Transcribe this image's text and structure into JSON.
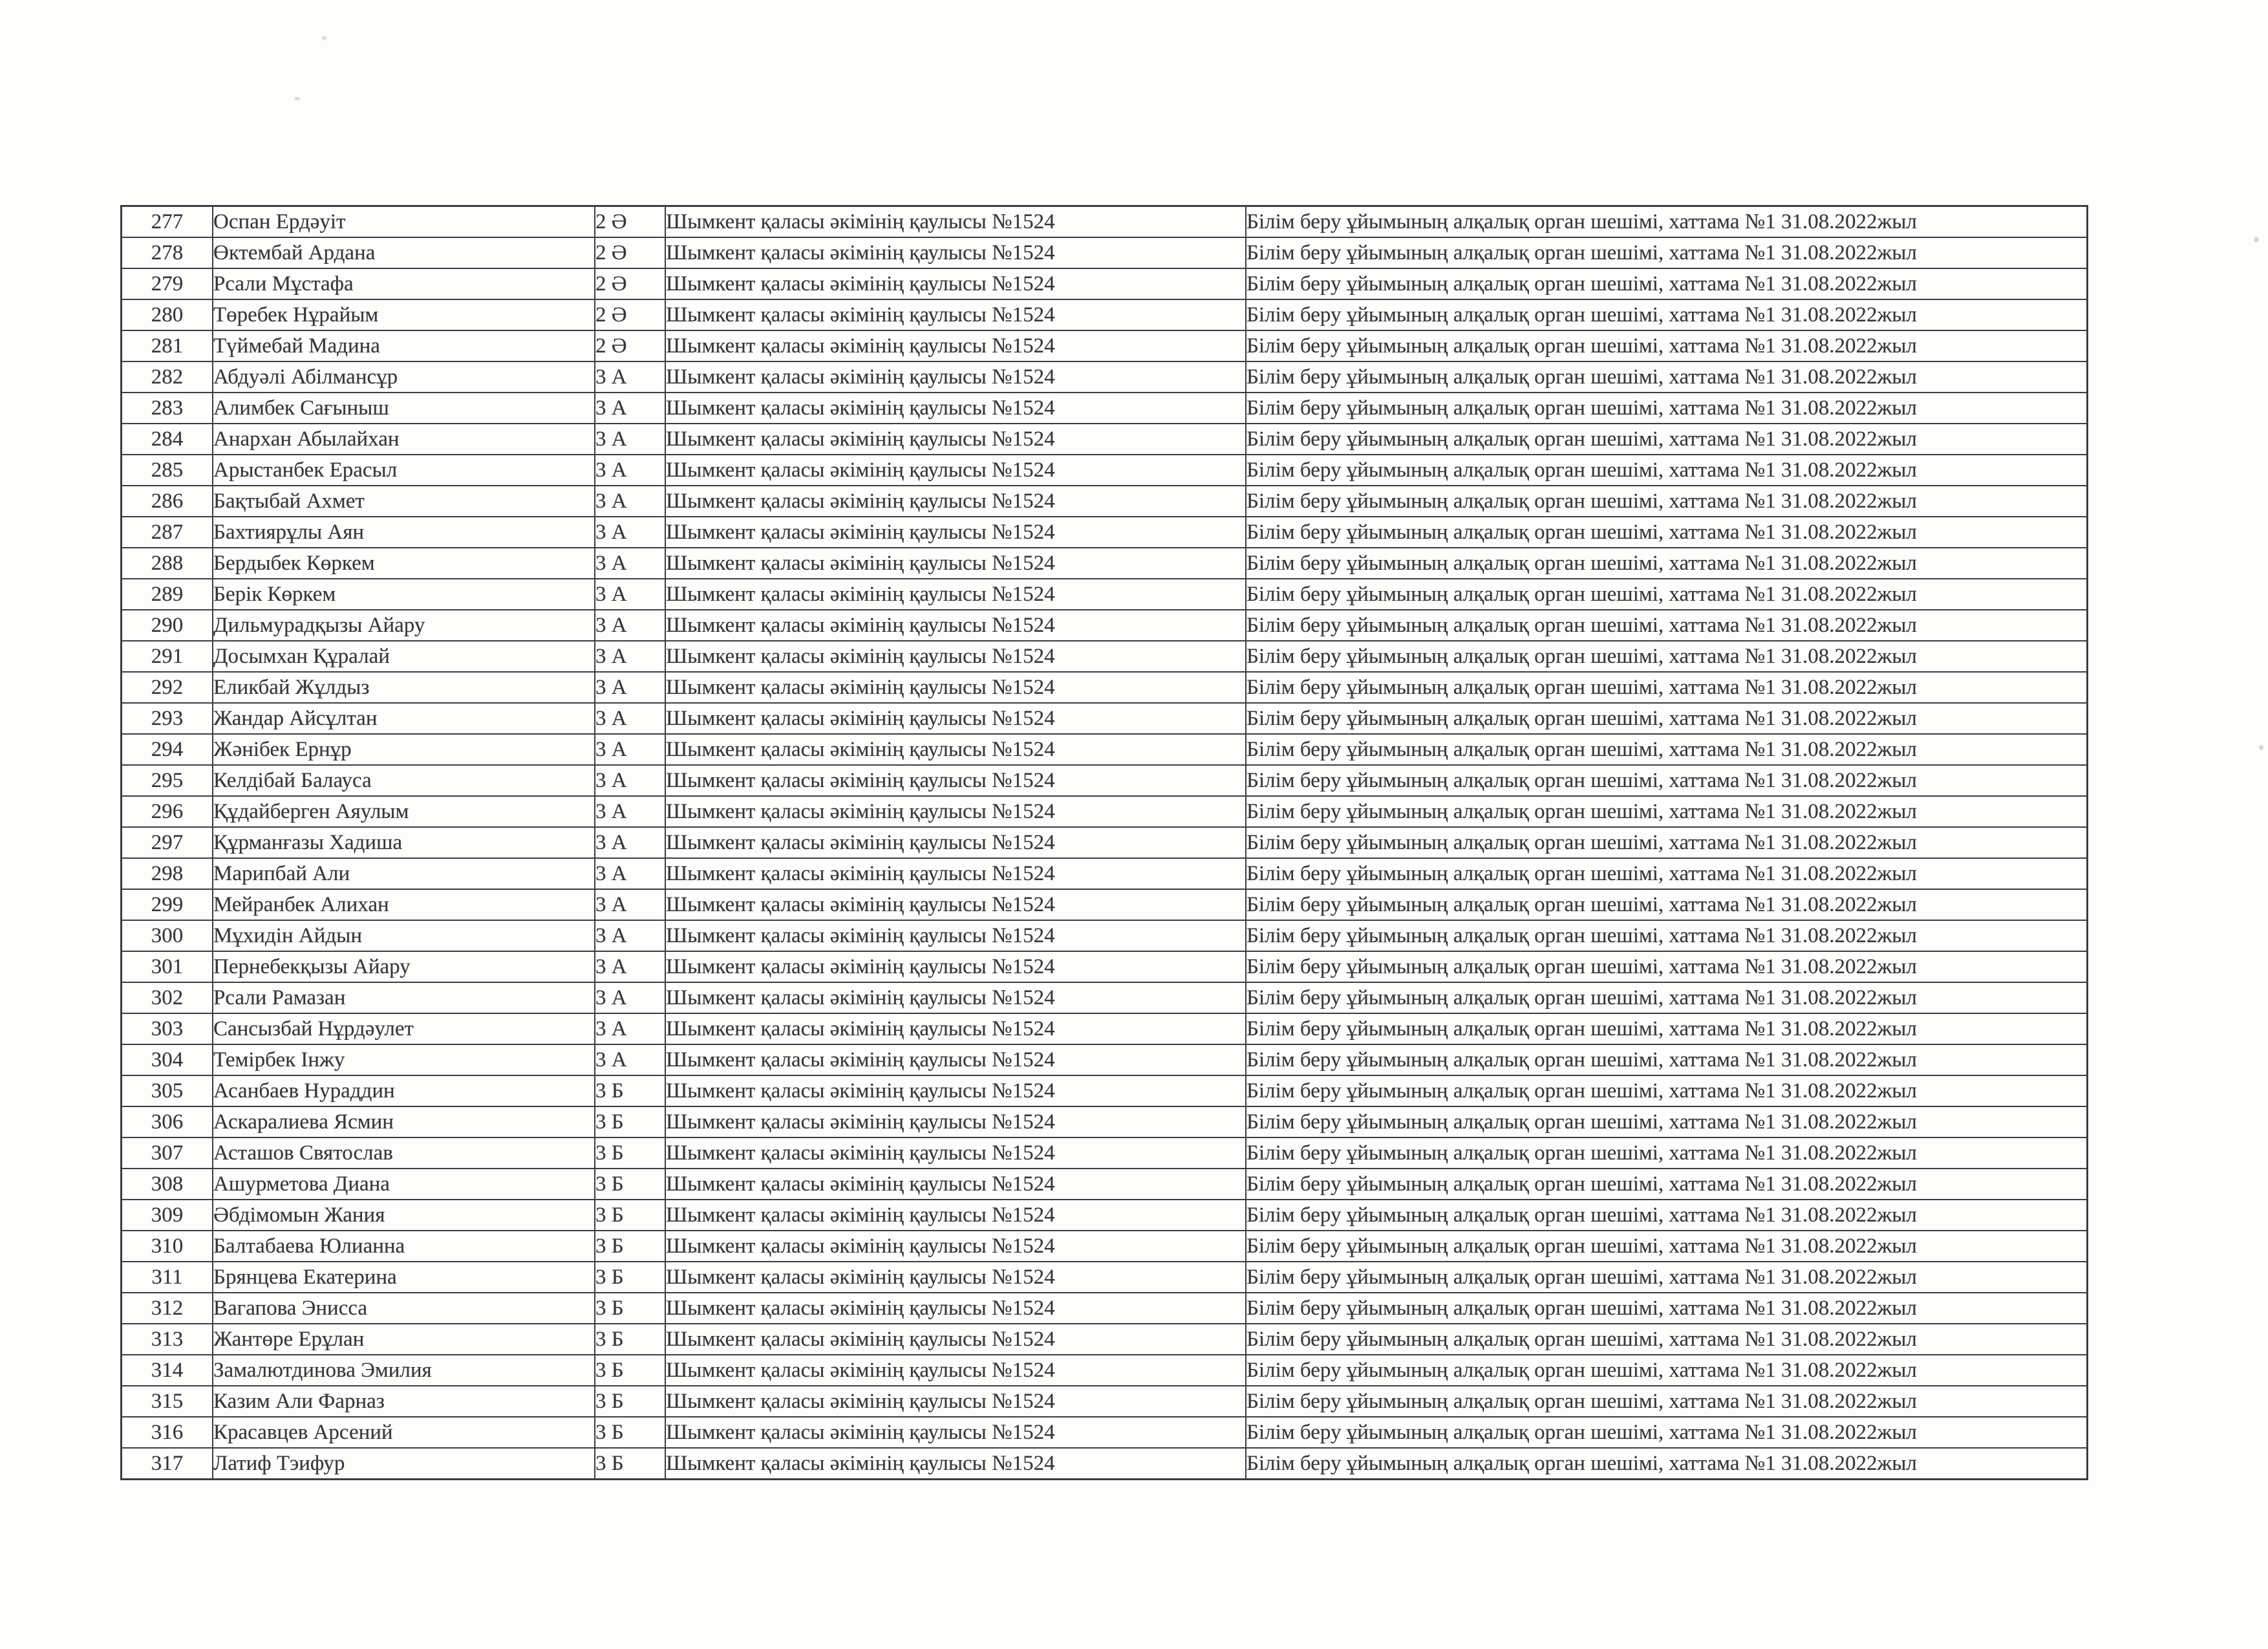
{
  "table": {
    "fields": [
      "no",
      "name",
      "class",
      "decision",
      "protocol"
    ],
    "rows": [
      {
        "no": "277",
        "name": "Оспан Ердәуіт",
        "class": "2 Ә",
        "decision": "Шымкент қаласы әкімінің қаулысы №1524",
        "protocol": "Білім беру ұйымының алқалық орган шешімі, хаттама №1 31.08.2022жыл"
      },
      {
        "no": "278",
        "name": "Өктембай Ардана",
        "class": "2 Ә",
        "decision": "Шымкент қаласы әкімінің қаулысы №1524",
        "protocol": "Білім беру ұйымының алқалық орган шешімі, хаттама №1 31.08.2022жыл"
      },
      {
        "no": "279",
        "name": "Рсали Мұстафа",
        "class": "2 Ә",
        "decision": "Шымкент қаласы әкімінің қаулысы №1524",
        "protocol": "Білім беру ұйымының алқалық орган шешімі, хаттама №1 31.08.2022жыл"
      },
      {
        "no": "280",
        "name": "Төребек Нұрайым",
        "class": "2 Ә",
        "decision": "Шымкент қаласы әкімінің қаулысы №1524",
        "protocol": "Білім беру ұйымының алқалық орган шешімі, хаттама №1 31.08.2022жыл"
      },
      {
        "no": "281",
        "name": "Түймебай Мадина",
        "class": "2 Ә",
        "decision": "Шымкент қаласы әкімінің қаулысы №1524",
        "protocol": "Білім беру ұйымының алқалық орган шешімі, хаттама №1 31.08.2022жыл"
      },
      {
        "no": "282",
        "name": "Абдуәлі Абілмансұр",
        "class": "3 А",
        "decision": "Шымкент қаласы әкімінің қаулысы №1524",
        "protocol": "Білім беру ұйымының алқалық орган шешімі, хаттама №1 31.08.2022жыл"
      },
      {
        "no": "283",
        "name": "Алимбек Сағыныш",
        "class": "3 А",
        "decision": "Шымкент қаласы әкімінің қаулысы №1524",
        "protocol": "Білім беру ұйымының алқалық орган шешімі, хаттама №1 31.08.2022жыл"
      },
      {
        "no": "284",
        "name": "Анархан Абылайхан",
        "class": "3 А",
        "decision": "Шымкент қаласы әкімінің қаулысы №1524",
        "protocol": "Білім беру ұйымының алқалық орган шешімі, хаттама №1 31.08.2022жыл"
      },
      {
        "no": "285",
        "name": "Арыстанбек Ерасыл",
        "class": "3 А",
        "decision": "Шымкент қаласы әкімінің қаулысы №1524",
        "protocol": "Білім беру ұйымының алқалық орган шешімі, хаттама №1 31.08.2022жыл"
      },
      {
        "no": "286",
        "name": "Бақтыбай Ахмет",
        "class": "3 А",
        "decision": "Шымкент қаласы әкімінің қаулысы №1524",
        "protocol": "Білім беру ұйымының алқалық орган шешімі, хаттама №1 31.08.2022жыл"
      },
      {
        "no": "287",
        "name": "Бахтиярұлы Аян",
        "class": "3 А",
        "decision": "Шымкент қаласы әкімінің қаулысы №1524",
        "protocol": "Білім беру ұйымының алқалық орган шешімі, хаттама №1 31.08.2022жыл"
      },
      {
        "no": "288",
        "name": "Бердыбек Көркем",
        "class": "3 А",
        "decision": "Шымкент қаласы әкімінің қаулысы №1524",
        "protocol": "Білім беру ұйымының алқалық орган шешімі, хаттама №1 31.08.2022жыл"
      },
      {
        "no": "289",
        "name": "Берік Көркем",
        "class": "3 А",
        "decision": "Шымкент қаласы әкімінің қаулысы №1524",
        "protocol": "Білім беру ұйымының алқалық орган шешімі, хаттама №1 31.08.2022жыл"
      },
      {
        "no": "290",
        "name": "Дильмурадқызы Айару",
        "class": "3 А",
        "decision": "Шымкент қаласы әкімінің қаулысы №1524",
        "protocol": "Білім беру ұйымының алқалық орган шешімі, хаттама №1 31.08.2022жыл"
      },
      {
        "no": "291",
        "name": "Досымхан Құралай",
        "class": "3 А",
        "decision": "Шымкент қаласы әкімінің қаулысы №1524",
        "protocol": "Білім беру ұйымының алқалық орган шешімі, хаттама №1 31.08.2022жыл"
      },
      {
        "no": "292",
        "name": "Еликбай Жұлдыз",
        "class": "3 А",
        "decision": "Шымкент қаласы әкімінің қаулысы №1524",
        "protocol": "Білім беру ұйымының алқалық орган шешімі, хаттама №1 31.08.2022жыл"
      },
      {
        "no": "293",
        "name": "Жандар Айсұлтан",
        "class": "3 А",
        "decision": "Шымкент қаласы әкімінің қаулысы №1524",
        "protocol": "Білім беру ұйымының алқалық орган шешімі, хаттама №1 31.08.2022жыл"
      },
      {
        "no": "294",
        "name": "Жәнібек Ернұр",
        "class": "3 А",
        "decision": "Шымкент қаласы әкімінің қаулысы №1524",
        "protocol": "Білім беру ұйымының алқалық орган шешімі, хаттама №1 31.08.2022жыл"
      },
      {
        "no": "295",
        "name": "Келдібай Балауса",
        "class": "3 А",
        "decision": "Шымкент қаласы әкімінің қаулысы №1524",
        "protocol": "Білім беру ұйымының алқалық орган шешімі, хаттама №1 31.08.2022жыл"
      },
      {
        "no": "296",
        "name": "Құдайберген Аяулым",
        "class": "3 А",
        "decision": "Шымкент қаласы әкімінің қаулысы №1524",
        "protocol": "Білім беру ұйымының алқалық орган шешімі, хаттама №1 31.08.2022жыл"
      },
      {
        "no": "297",
        "name": "Құрманғазы Хадиша",
        "class": "3 А",
        "decision": "Шымкент қаласы әкімінің қаулысы №1524",
        "protocol": "Білім беру ұйымының алқалық орган шешімі, хаттама №1 31.08.2022жыл"
      },
      {
        "no": "298",
        "name": "Марипбай Али",
        "class": "3 А",
        "decision": "Шымкент қаласы әкімінің қаулысы №1524",
        "protocol": "Білім беру ұйымының алқалық орган шешімі, хаттама №1 31.08.2022жыл"
      },
      {
        "no": "299",
        "name": "Мейранбек Алихан",
        "class": "3 А",
        "decision": "Шымкент қаласы әкімінің қаулысы №1524",
        "protocol": "Білім беру ұйымының алқалық орган шешімі, хаттама №1 31.08.2022жыл"
      },
      {
        "no": "300",
        "name": "Мұхидін Айдын",
        "class": "3 А",
        "decision": "Шымкент қаласы әкімінің қаулысы №1524",
        "protocol": "Білім беру ұйымының алқалық орган шешімі, хаттама №1 31.08.2022жыл"
      },
      {
        "no": "301",
        "name": "Пернебекқызы Айару",
        "class": "3 А",
        "decision": "Шымкент қаласы әкімінің қаулысы №1524",
        "protocol": "Білім беру ұйымының алқалық орган шешімі, хаттама №1 31.08.2022жыл"
      },
      {
        "no": "302",
        "name": "Рсали Рамазан",
        "class": "3 А",
        "decision": "Шымкент қаласы әкімінің қаулысы №1524",
        "protocol": "Білім беру ұйымының алқалық орган шешімі, хаттама №1 31.08.2022жыл"
      },
      {
        "no": "303",
        "name": "Сансызбай Нұрдәулет",
        "class": "3 А",
        "decision": "Шымкент қаласы әкімінің қаулысы №1524",
        "protocol": "Білім беру ұйымының алқалық орган шешімі, хаттама №1 31.08.2022жыл"
      },
      {
        "no": "304",
        "name": "Темірбек Інжу",
        "class": "3 А",
        "decision": "Шымкент қаласы әкімінің қаулысы №1524",
        "protocol": "Білім беру ұйымының алқалық орган шешімі, хаттама №1 31.08.2022жыл"
      },
      {
        "no": "305",
        "name": "Асанбаев Нураддин",
        "class": "3 Б",
        "decision": "Шымкент қаласы әкімінің қаулысы №1524",
        "protocol": "Білім беру ұйымының алқалық орган шешімі, хаттама №1 31.08.2022жыл"
      },
      {
        "no": "306",
        "name": "Аскаралиева Ясмин",
        "class": "3 Б",
        "decision": "Шымкент қаласы әкімінің қаулысы №1524",
        "protocol": "Білім беру ұйымының алқалық орган шешімі, хаттама №1 31.08.2022жыл"
      },
      {
        "no": "307",
        "name": "Асташов Святослав",
        "class": "3 Б",
        "decision": "Шымкент қаласы әкімінің қаулысы №1524",
        "protocol": "Білім беру ұйымының алқалық орган шешімі, хаттама №1 31.08.2022жыл"
      },
      {
        "no": "308",
        "name": "Ашурметова Диана",
        "class": "3 Б",
        "decision": "Шымкент қаласы әкімінің қаулысы №1524",
        "protocol": "Білім беру ұйымының алқалық орган шешімі, хаттама №1 31.08.2022жыл"
      },
      {
        "no": "309",
        "name": "Әбдімомын Жания",
        "class": "3 Б",
        "decision": "Шымкент қаласы әкімінің қаулысы №1524",
        "protocol": "Білім беру ұйымының алқалық орган шешімі, хаттама №1 31.08.2022жыл"
      },
      {
        "no": "310",
        "name": "Балтабаева Юлианна",
        "class": "3 Б",
        "decision": "Шымкент қаласы әкімінің қаулысы №1524",
        "protocol": "Білім беру ұйымының алқалық орган шешімі, хаттама №1 31.08.2022жыл"
      },
      {
        "no": "311",
        "name": "Брянцева Екатерина",
        "class": "3 Б",
        "decision": "Шымкент қаласы әкімінің қаулысы №1524",
        "protocol": "Білім беру ұйымының алқалық орган шешімі, хаттама №1 31.08.2022жыл"
      },
      {
        "no": "312",
        "name": "Вагапова Энисса",
        "class": "3 Б",
        "decision": "Шымкент қаласы әкімінің қаулысы №1524",
        "protocol": "Білім беру ұйымының алқалық орган шешімі, хаттама №1 31.08.2022жыл"
      },
      {
        "no": "313",
        "name": "Жантөре Ерұлан",
        "class": "3 Б",
        "decision": "Шымкент қаласы әкімінің қаулысы №1524",
        "protocol": "Білім беру ұйымының алқалық орган шешімі, хаттама №1 31.08.2022жыл"
      },
      {
        "no": "314",
        "name": "Замалютдинова Эмилия",
        "class": "3 Б",
        "decision": "Шымкент қаласы әкімінің қаулысы №1524",
        "protocol": "Білім беру ұйымының алқалық орган шешімі, хаттама №1 31.08.2022жыл"
      },
      {
        "no": "315",
        "name": "Казим Али Фарназ",
        "class": "3 Б",
        "decision": "Шымкент қаласы әкімінің қаулысы №1524",
        "protocol": "Білім беру ұйымының алқалық орган шешімі, хаттама №1 31.08.2022жыл"
      },
      {
        "no": "316",
        "name": "Красавцев Арсений",
        "class": "3 Б",
        "decision": "Шымкент қаласы әкімінің қаулысы №1524",
        "protocol": "Білім беру ұйымының алқалық орган шешімі, хаттама №1 31.08.2022жыл"
      },
      {
        "no": "317",
        "name": "Латиф Тэифур",
        "class": "3 Б",
        "decision": "Шымкент қаласы әкімінің қаулысы №1524",
        "protocol": "Білім беру ұйымының алқалық орган шешімі, хаттама №1 31.08.2022жыл"
      }
    ]
  }
}
